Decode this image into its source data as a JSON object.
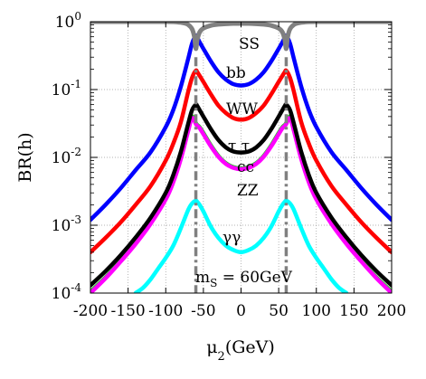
{
  "chart_data": {
    "type": "line",
    "xlabel": "μ2(GeV)",
    "ylabel": "BR(h)",
    "xlim": [
      -200,
      200
    ],
    "ylim": [
      0.0001,
      1
    ],
    "yscale": "log",
    "grid": true,
    "x_ticks": [
      {
        "value": -200,
        "label": "-200"
      },
      {
        "value": -150,
        "label": "-150"
      },
      {
        "value": -100,
        "label": "-100"
      },
      {
        "value": -50,
        "label": "-50"
      },
      {
        "value": 0,
        "label": "0"
      },
      {
        "value": 50,
        "label": "50"
      },
      {
        "value": 100,
        "label": "100"
      },
      {
        "value": 150,
        "label": "150"
      },
      {
        "value": 200,
        "label": "200"
      }
    ],
    "y_ticks": [
      {
        "value": 1,
        "base": "10",
        "exp": "0"
      },
      {
        "value": 0.1,
        "base": "10",
        "exp": "-1"
      },
      {
        "value": 0.01,
        "base": "10",
        "exp": "-2"
      },
      {
        "value": 0.001,
        "base": "10",
        "exp": "-3"
      },
      {
        "value": 0.0001,
        "base": "10",
        "exp": "-4"
      }
    ],
    "annotation": {
      "main": "m",
      "sub": "S",
      "rest": " = 60GeV"
    },
    "series": [
      {
        "label": "SS",
        "color": "#808080",
        "x": [
          -200,
          -100,
          -90,
          -85,
          -80,
          -75,
          -70,
          -65,
          -62,
          -60,
          -58,
          -55,
          -50,
          -40,
          -30,
          -20,
          -10,
          0,
          10,
          20,
          30,
          40,
          50,
          55,
          58,
          60,
          62,
          65,
          70,
          75,
          80,
          85,
          90,
          100,
          200
        ],
        "y": [
          1,
          0.999,
          0.995,
          0.99,
          0.975,
          0.95,
          0.9,
          0.78,
          0.6,
          0.4,
          0.55,
          0.7,
          0.8,
          0.88,
          0.915,
          0.93,
          0.94,
          0.942,
          0.94,
          0.93,
          0.915,
          0.88,
          0.8,
          0.7,
          0.55,
          0.4,
          0.6,
          0.78,
          0.9,
          0.95,
          0.975,
          0.99,
          0.995,
          0.999,
          1
        ]
      },
      {
        "label": "bb",
        "color": "#0000ff",
        "x": [
          -200,
          -180,
          -160,
          -140,
          -120,
          -100,
          -90,
          -80,
          -70,
          -65,
          -60,
          -58,
          -55,
          -50,
          -40,
          -30,
          -20,
          -10,
          0,
          10,
          20,
          30,
          40,
          50,
          55,
          58,
          60,
          65,
          70,
          80,
          90,
          100,
          120,
          140,
          160,
          180,
          200
        ],
        "y": [
          0.0012,
          0.002,
          0.0035,
          0.0065,
          0.012,
          0.028,
          0.05,
          0.11,
          0.29,
          0.48,
          0.62,
          0.58,
          0.5,
          0.4,
          0.26,
          0.18,
          0.14,
          0.12,
          0.115,
          0.12,
          0.14,
          0.18,
          0.26,
          0.4,
          0.5,
          0.58,
          0.62,
          0.48,
          0.29,
          0.11,
          0.05,
          0.028,
          0.012,
          0.0065,
          0.0035,
          0.002,
          0.0012
        ]
      },
      {
        "label": "WW",
        "color": "#ff0000",
        "x": [
          -200,
          -180,
          -160,
          -140,
          -120,
          -100,
          -90,
          -80,
          -70,
          -65,
          -60,
          -58,
          -55,
          -50,
          -40,
          -30,
          -20,
          -10,
          0,
          10,
          20,
          30,
          40,
          50,
          55,
          58,
          60,
          65,
          70,
          80,
          90,
          100,
          120,
          140,
          160,
          180,
          200
        ],
        "y": [
          0.0004,
          0.00065,
          0.0011,
          0.002,
          0.0038,
          0.009,
          0.016,
          0.033,
          0.095,
          0.15,
          0.19,
          0.18,
          0.16,
          0.13,
          0.085,
          0.058,
          0.045,
          0.038,
          0.036,
          0.038,
          0.045,
          0.058,
          0.085,
          0.13,
          0.16,
          0.18,
          0.19,
          0.15,
          0.095,
          0.033,
          0.016,
          0.009,
          0.0038,
          0.002,
          0.0011,
          0.00065,
          0.0004
        ]
      },
      {
        "label": "τ τ",
        "color": "#000000",
        "x": [
          -200,
          -180,
          -160,
          -140,
          -120,
          -100,
          -90,
          -80,
          -70,
          -65,
          -60,
          -58,
          -55,
          -50,
          -40,
          -30,
          -20,
          -10,
          0,
          10,
          20,
          30,
          40,
          50,
          55,
          58,
          60,
          65,
          70,
          80,
          90,
          100,
          120,
          140,
          160,
          180,
          200
        ],
        "y": [
          0.00013,
          0.00021,
          0.00036,
          0.00066,
          0.0013,
          0.003,
          0.0055,
          0.012,
          0.032,
          0.05,
          0.06,
          0.057,
          0.05,
          0.04,
          0.026,
          0.018,
          0.014,
          0.0122,
          0.0118,
          0.0122,
          0.014,
          0.018,
          0.026,
          0.04,
          0.05,
          0.057,
          0.06,
          0.05,
          0.032,
          0.012,
          0.0055,
          0.003,
          0.0013,
          0.00066,
          0.00036,
          0.00021,
          0.00013
        ]
      },
      {
        "label": "cc",
        "color": "#22cc22",
        "x": [
          -200,
          -180,
          -160,
          -140,
          -120,
          -100,
          -90,
          -80,
          -70,
          -65,
          -60,
          -58,
          -55,
          -50,
          -40,
          -30,
          -20,
          -10,
          0,
          10,
          20,
          30,
          40,
          50,
          55,
          58,
          60,
          65,
          70,
          80,
          90,
          100,
          120,
          140,
          160,
          180,
          200
        ],
        "y": [
          0.000105,
          0.00017,
          0.0003,
          0.00055,
          0.0011,
          0.0025,
          0.0045,
          0.0098,
          0.026,
          0.04,
          0.032,
          0.03,
          0.028,
          0.023,
          0.015,
          0.0105,
          0.0082,
          0.0072,
          0.0069,
          0.0072,
          0.0082,
          0.0105,
          0.015,
          0.023,
          0.028,
          0.03,
          0.032,
          0.04,
          0.026,
          0.0098,
          0.0045,
          0.0025,
          0.0011,
          0.00055,
          0.0003,
          0.00017,
          0.000105
        ]
      },
      {
        "label": "ZZ",
        "color": "#ff00ff",
        "x": [
          -200,
          -180,
          -160,
          -140,
          -120,
          -100,
          -90,
          -80,
          -70,
          -65,
          -60,
          -58,
          -55,
          -50,
          -40,
          -30,
          -20,
          -10,
          0,
          10,
          20,
          30,
          40,
          50,
          55,
          58,
          60,
          65,
          70,
          80,
          90,
          100,
          120,
          140,
          160,
          180,
          200
        ],
        "y": [
          0.0001,
          0.000165,
          0.00029,
          0.00053,
          0.00105,
          0.0024,
          0.0043,
          0.0094,
          0.025,
          0.038,
          0.031,
          0.029,
          0.027,
          0.022,
          0.0145,
          0.0102,
          0.008,
          0.007,
          0.0067,
          0.007,
          0.008,
          0.0102,
          0.0145,
          0.022,
          0.027,
          0.029,
          0.031,
          0.038,
          0.025,
          0.0094,
          0.0043,
          0.0024,
          0.00105,
          0.00053,
          0.00029,
          0.000165,
          0.0001
        ]
      },
      {
        "label": "γγ",
        "color": "#00ffff",
        "x": [
          -140,
          -130,
          -120,
          -110,
          -100,
          -90,
          -80,
          -70,
          -65,
          -60,
          -58,
          -55,
          -50,
          -40,
          -30,
          -20,
          -10,
          0,
          10,
          20,
          30,
          40,
          50,
          55,
          58,
          60,
          65,
          70,
          80,
          90,
          100,
          110,
          120,
          130,
          140
        ],
        "y": [
          0.0001,
          0.00012,
          0.00016,
          0.00023,
          0.00033,
          0.0005,
          0.0009,
          0.0017,
          0.0021,
          0.0023,
          0.0022,
          0.002,
          0.0016,
          0.00095,
          0.00065,
          0.0005,
          0.00043,
          0.0004,
          0.00043,
          0.0005,
          0.00065,
          0.00095,
          0.0016,
          0.002,
          0.0022,
          0.0023,
          0.0021,
          0.0017,
          0.0009,
          0.0005,
          0.00033,
          0.00023,
          0.00016,
          0.00012,
          0.0001
        ]
      }
    ]
  }
}
